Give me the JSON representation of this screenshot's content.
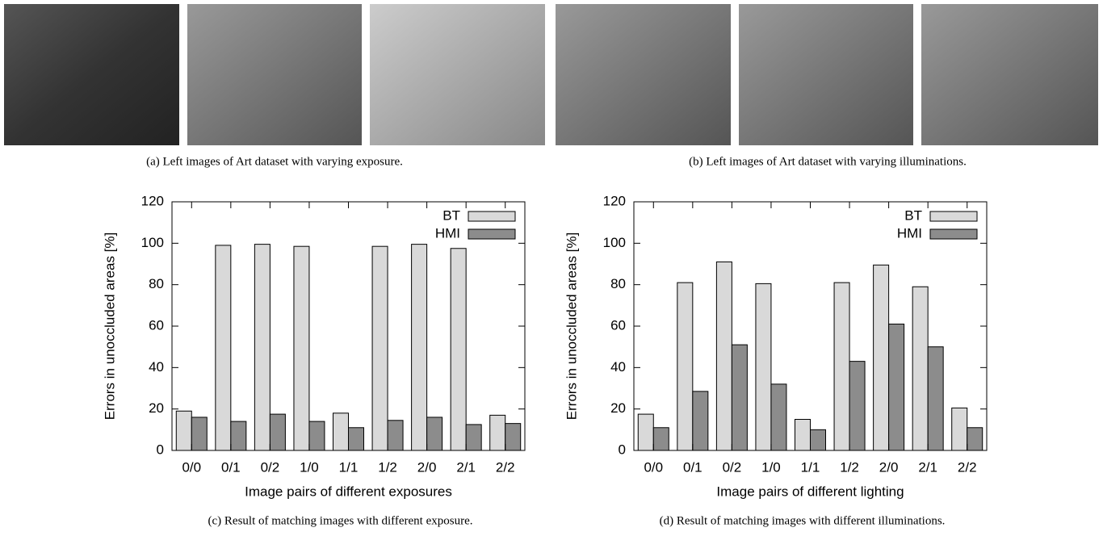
{
  "image_captions": [
    "(a) Left images of Art dataset with varying exposure.",
    "(b) Left images of Art dataset with varying illuminations."
  ],
  "chart_data": [
    {
      "type": "bar",
      "caption": "(c) Result of matching images with different exposure.",
      "xlabel": "Image pairs of different exposures",
      "ylabel": "Errors in unoccluded areas [%]",
      "categories": [
        "0/0",
        "0/1",
        "0/2",
        "1/0",
        "1/1",
        "1/2",
        "2/0",
        "2/1",
        "2/2"
      ],
      "series": [
        {
          "name": "BT",
          "color": "#d9d9d9",
          "values": [
            19,
            99,
            99.5,
            98.5,
            18,
            98.5,
            99.5,
            97.5,
            17
          ]
        },
        {
          "name": "HMI",
          "color": "#8c8c8c",
          "values": [
            16,
            14,
            17.5,
            14,
            11,
            14.5,
            16,
            12.5,
            13
          ]
        }
      ],
      "ylim": [
        0,
        120
      ],
      "yticks": [
        0,
        20,
        40,
        60,
        80,
        100,
        120
      ],
      "legend": "top-right"
    },
    {
      "type": "bar",
      "caption": "(d) Result of matching images with different illuminations.",
      "xlabel": "Image pairs of different lighting",
      "ylabel": "Errors in unoccluded areas [%]",
      "categories": [
        "0/0",
        "0/1",
        "0/2",
        "1/0",
        "1/1",
        "1/2",
        "2/0",
        "2/1",
        "2/2"
      ],
      "series": [
        {
          "name": "BT",
          "color": "#d9d9d9",
          "values": [
            17.5,
            81,
            91,
            80.5,
            15,
            81,
            89.5,
            79,
            20.5
          ]
        },
        {
          "name": "HMI",
          "color": "#8c8c8c",
          "values": [
            11,
            28.5,
            51,
            32,
            10,
            43,
            61,
            50,
            11
          ]
        }
      ],
      "ylim": [
        0,
        120
      ],
      "yticks": [
        0,
        20,
        40,
        60,
        80,
        100,
        120
      ],
      "legend": "top-right"
    }
  ]
}
